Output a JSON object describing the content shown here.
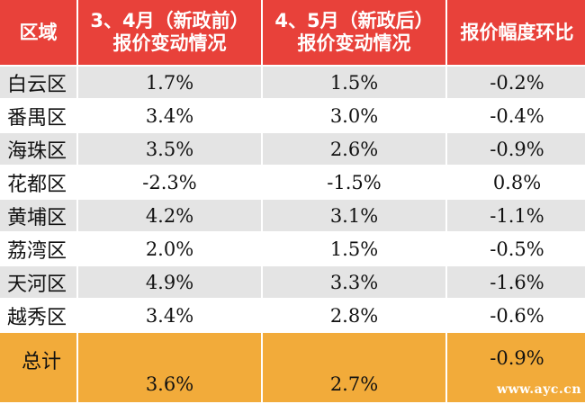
{
  "header": {
    "col1": "区域",
    "col2_line1": "3、4月（新政前）",
    "col2_line2": "报价变动情况",
    "col3_line1": "4、5月（新政后）",
    "col3_line2": "报价变动情况",
    "col4": "报价幅度环比"
  },
  "rows": [
    {
      "region": "白云区",
      "before": "1.7%",
      "after": "1.5%",
      "change": "-0.2%"
    },
    {
      "region": "番禺区",
      "before": "3.4%",
      "after": "3.0%",
      "change": "-0.4%"
    },
    {
      "region": "海珠区",
      "before": "3.5%",
      "after": "2.6%",
      "change": "-0.9%"
    },
    {
      "region": "花都区",
      "before": "-2.3%",
      "after": "-1.5%",
      "change": "0.8%"
    },
    {
      "region": "黄埔区",
      "before": "4.2%",
      "after": "3.1%",
      "change": "-1.1%"
    },
    {
      "region": "荔湾区",
      "before": "2.0%",
      "after": "1.5%",
      "change": "-0.5%"
    },
    {
      "region": "天河区",
      "before": "4.9%",
      "after": "3.3%",
      "change": "-1.6%"
    },
    {
      "region": "越秀区",
      "before": "3.4%",
      "after": "2.8%",
      "change": "-0.6%"
    }
  ],
  "total": {
    "label": "总计",
    "before": "3.6%",
    "after": "2.7%",
    "change": "-0.9%"
  },
  "watermark": "www.ayc.cn",
  "colors": {
    "header_bg": "#e8413a",
    "total_bg": "#f2ab3a",
    "stripe_bg": "#e4e4e4"
  }
}
